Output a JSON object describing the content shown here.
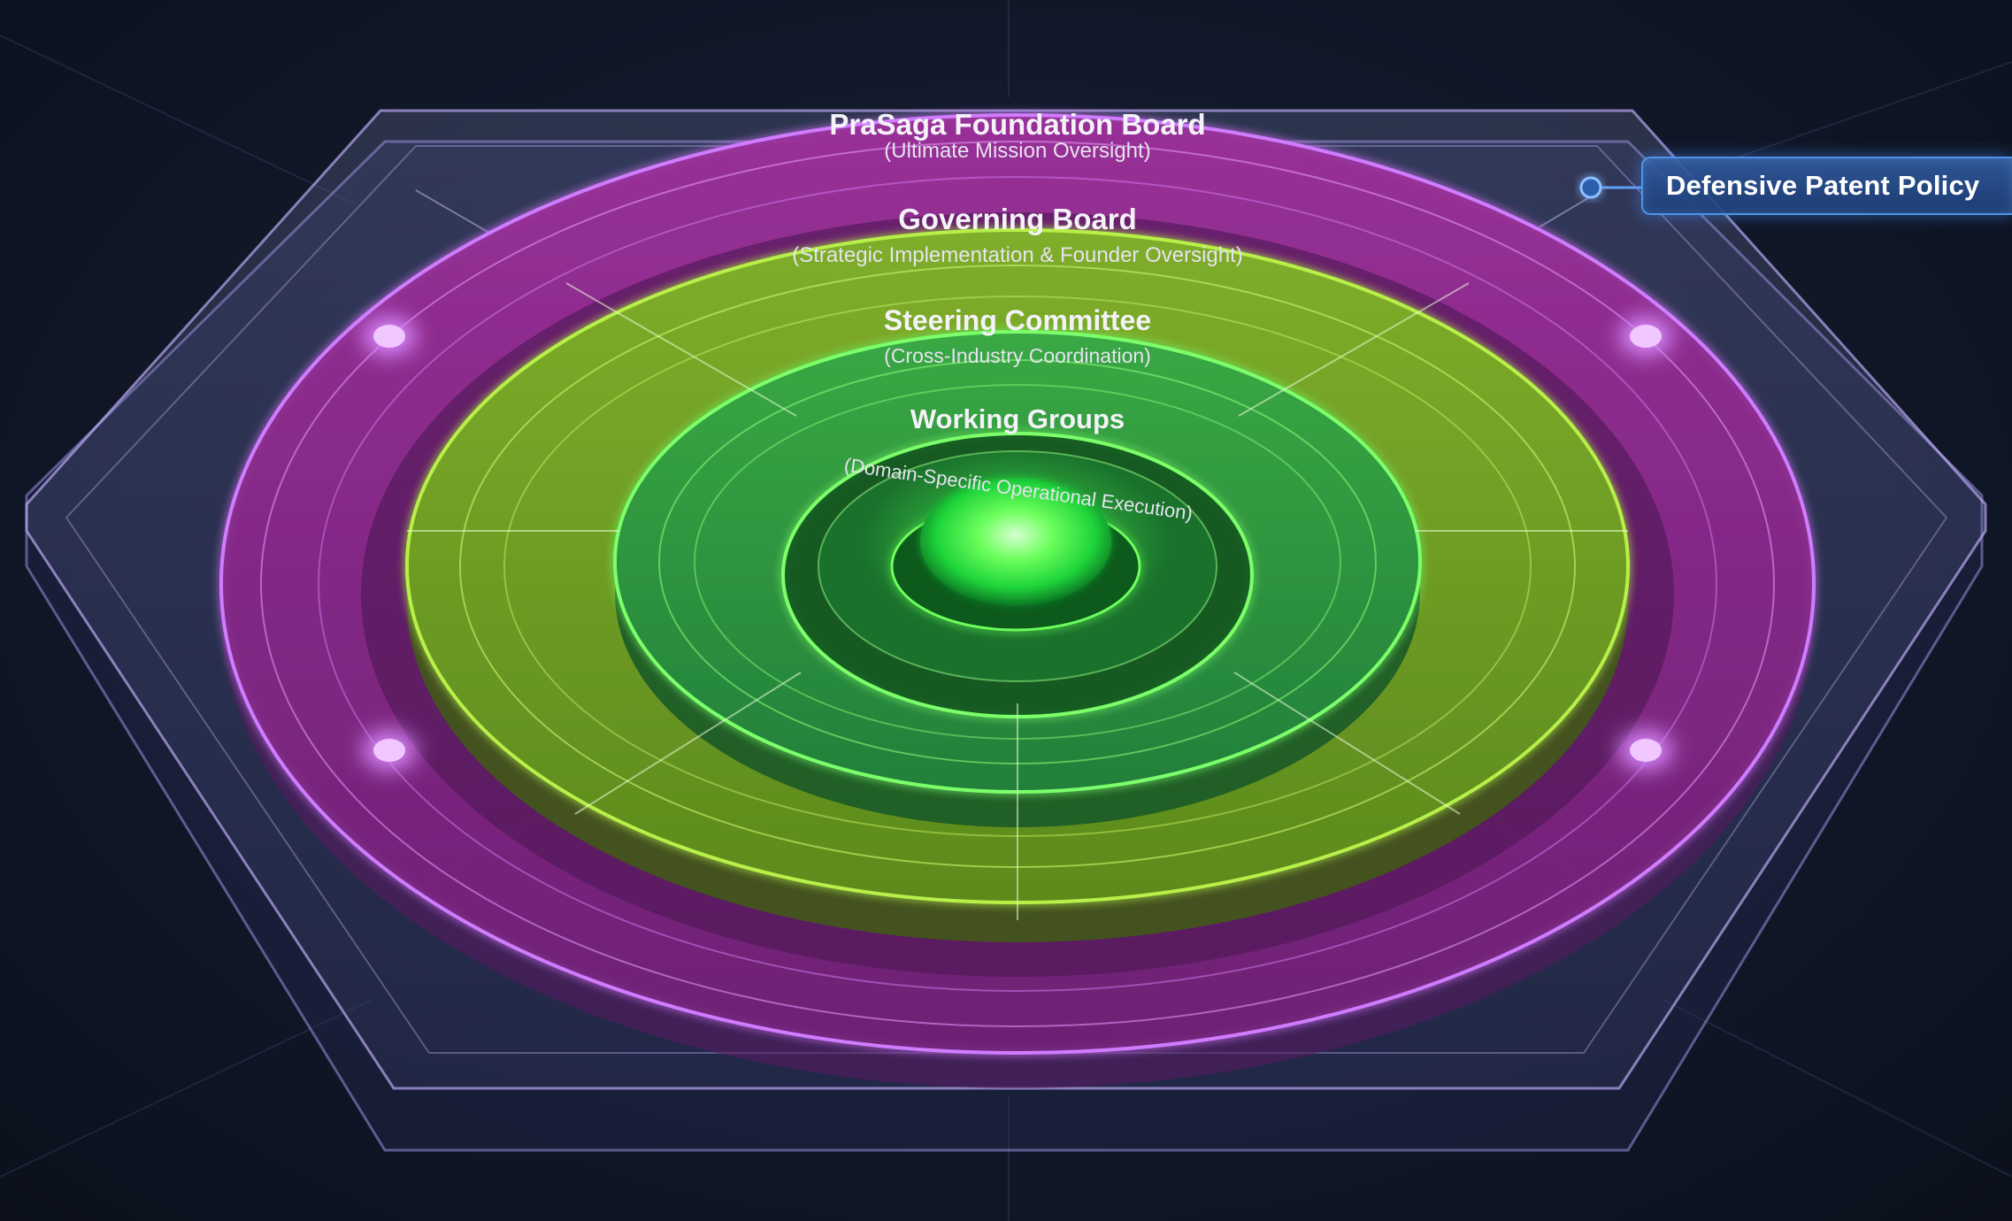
{
  "tiers": [
    {
      "id": "foundation-board",
      "title": "PraSaga Foundation Board",
      "subtitle": "(Ultimate Mission Oversight)"
    },
    {
      "id": "governing-board",
      "title": "Governing Board",
      "subtitle": "(Strategic Implementation & Founder Oversight)"
    },
    {
      "id": "steering-committee",
      "title": "Steering Committee",
      "subtitle": "(Cross-Industry Coordination)"
    },
    {
      "id": "working-groups",
      "title": "Working Groups",
      "subtitle": "(Domain-Specific Operational Execution)"
    }
  ],
  "callout": {
    "label": "Defensive Patent Policy"
  },
  "colors": {
    "background": "#121a2c",
    "outer_ring": "#8a2a8a",
    "outer_ring_glow": "#c06cf0",
    "olive_ring": "#6f9a23",
    "inner_ring": "#2f9a3a",
    "core": "#52ff52",
    "callout_border": "#4f93e6"
  }
}
